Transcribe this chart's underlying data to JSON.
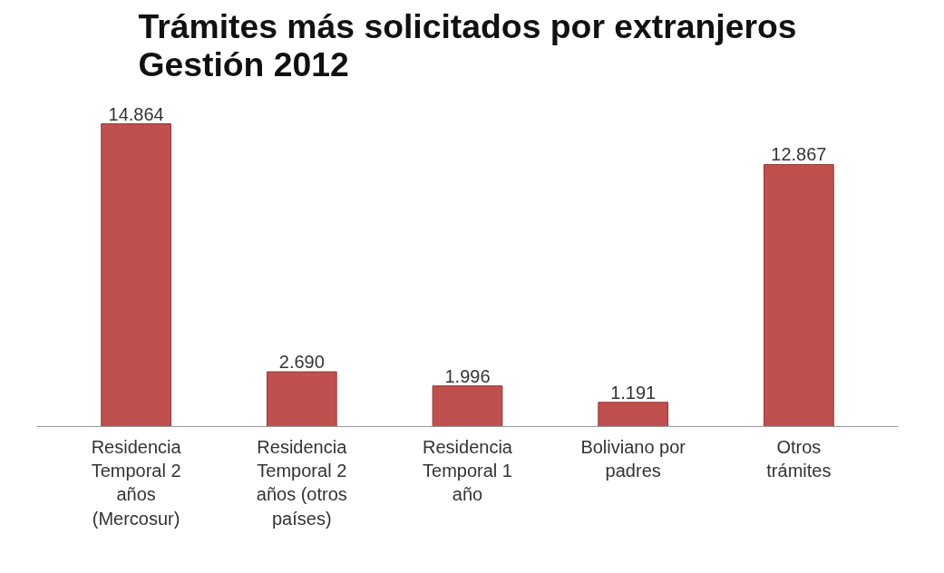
{
  "chart_data": {
    "type": "bar",
    "title": "Trámites más solicitados por extranjeros\nGestión 2012",
    "categories": [
      "Residencia Temporal 2 años (Mercosur)",
      "Residencia Temporal 2 años (otros países)",
      "Residencia Temporal 1 año",
      "Boliviano por padres",
      "Otros trámites"
    ],
    "values": [
      14864,
      2690,
      1996,
      1191,
      12867
    ],
    "value_labels": [
      "14.864",
      "2.690",
      "1.996",
      "1.191",
      "12.867"
    ],
    "color": "#c0504d",
    "grid": false
  }
}
